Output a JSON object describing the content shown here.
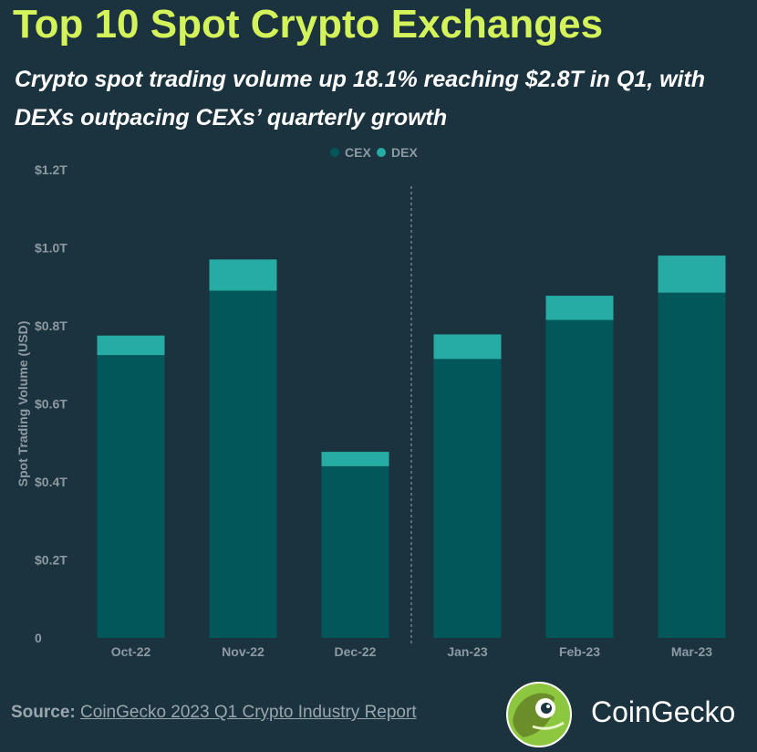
{
  "title": "Top 10 Spot Crypto Exchanges",
  "subtitle": "Crypto spot trading volume up 18.1% reaching $2.8T in Q1, with DEXs outpacing CEXs’ quarterly growth",
  "footer": {
    "source_label": "Source:",
    "source_text": "CoinGecko 2023 Q1 Crypto Industry Report",
    "brand": "CoinGecko"
  },
  "colors": {
    "background": "#1b333f",
    "title": "#d4f35a",
    "cex": "#01575a",
    "dex": "#26aca4",
    "axis_text": "#8e9aa3"
  },
  "chart_data": {
    "type": "bar",
    "stacked": true,
    "categories": [
      "Oct-22",
      "Nov-22",
      "Dec-22",
      "Jan-23",
      "Feb-23",
      "Mar-23"
    ],
    "series": [
      {
        "name": "CEX",
        "color": "#01575a",
        "values": [
          0.725,
          0.89,
          0.44,
          0.715,
          0.815,
          0.885
        ]
      },
      {
        "name": "DEX",
        "color": "#26aca4",
        "values": [
          0.05,
          0.08,
          0.037,
          0.063,
          0.062,
          0.095
        ]
      }
    ],
    "ylabel": "Spot Trading Volume (USD)",
    "xlabel": "",
    "ylim": [
      0,
      1.2
    ],
    "yticks": [
      0,
      0.2,
      0.4,
      0.6,
      0.8,
      1.0,
      1.2
    ],
    "ytick_labels": [
      "0",
      "$0.2T",
      "$0.4T",
      "$0.6T",
      "$0.8T",
      "$1.0T",
      "$1.2T"
    ],
    "divider_after_category": "Dec-22",
    "legend": "top-center",
    "grid": false
  }
}
